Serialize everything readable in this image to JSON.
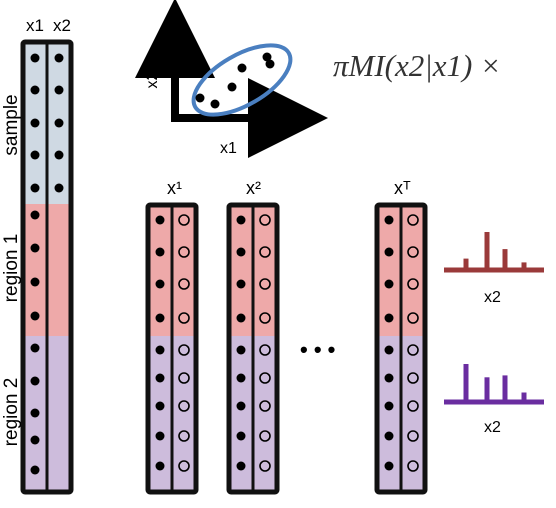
{
  "title_fragment": "",
  "data_columns": {
    "headers": [
      "x1",
      "x2"
    ],
    "rows": [
      "sample",
      "region 1",
      "region 2"
    ],
    "colors": {
      "sample": "#cfd9e3",
      "region1": "#eea9a9",
      "region2": "#cdbcdc",
      "border": "#111111"
    }
  },
  "scatter_inset": {
    "y_axis_label": "x2",
    "x_axis_label": "x1",
    "ellipse_color": "#4a7fc0"
  },
  "formula": {
    "text": "πMI(x2|x1) ×"
  },
  "permutations": {
    "labels": [
      "x¹",
      "x²",
      "xᵀ"
    ],
    "ellipsis": "• • •"
  },
  "histograms": [
    {
      "xlabel": "x2",
      "color": "#9a3a3a",
      "values": [
        0.3,
        1.0,
        0.55,
        0.2
      ]
    },
    {
      "xlabel": "x2",
      "color": "#6a2da0",
      "values": [
        1.0,
        0.65,
        0.7,
        0.25
      ]
    }
  ]
}
